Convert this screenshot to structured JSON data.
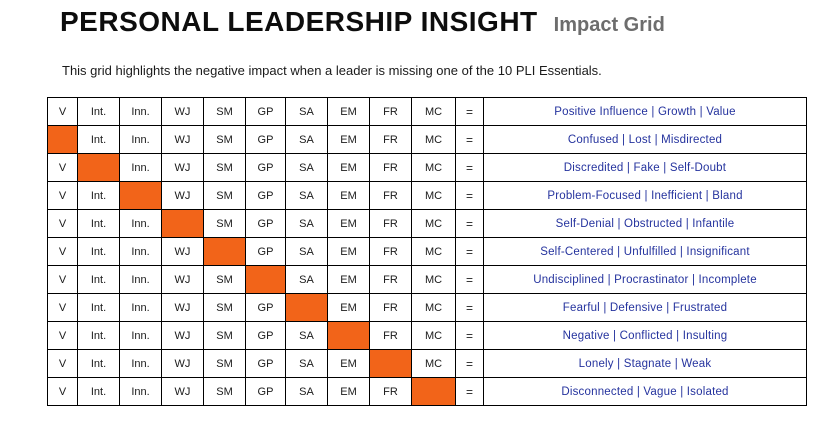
{
  "header": {
    "title": "PERSONAL LEADERSHIP INSIGHT",
    "subtitle_label": "Impact Grid",
    "description": "This grid highlights the negative impact when a leader is missing one of the 10 PLI Essentials."
  },
  "colors": {
    "orange": "#F26419",
    "blue": "#25339E",
    "subtitle_gray": "#6D6D6D"
  },
  "grid": {
    "essential_columns": [
      "V",
      "Int.",
      "Inn.",
      "WJ",
      "SM",
      "GP",
      "SA",
      "EM",
      "FR",
      "MC"
    ],
    "equals_symbol": "=",
    "rows": [
      {
        "missing": null,
        "result": "Positive Influence | Growth | Value"
      },
      {
        "missing": "V",
        "result": "Confused | Lost | Misdirected"
      },
      {
        "missing": "Int.",
        "result": "Discredited | Fake | Self-Doubt"
      },
      {
        "missing": "Inn.",
        "result": "Problem-Focused | Inefficient | Bland"
      },
      {
        "missing": "WJ",
        "result": "Self-Denial | Obstructed | Infantile"
      },
      {
        "missing": "SM",
        "result": "Self-Centered | Unfulfilled | Insignificant"
      },
      {
        "missing": "GP",
        "result": "Undisciplined | Procrastinator | Incomplete"
      },
      {
        "missing": "SA",
        "result": "Fearful | Defensive | Frustrated"
      },
      {
        "missing": "EM",
        "result": "Negative | Conflicted | Insulting"
      },
      {
        "missing": "FR",
        "result": "Lonely | Stagnate | Weak"
      },
      {
        "missing": "MC",
        "result": "Disconnected | Vague | Isolated"
      }
    ]
  }
}
